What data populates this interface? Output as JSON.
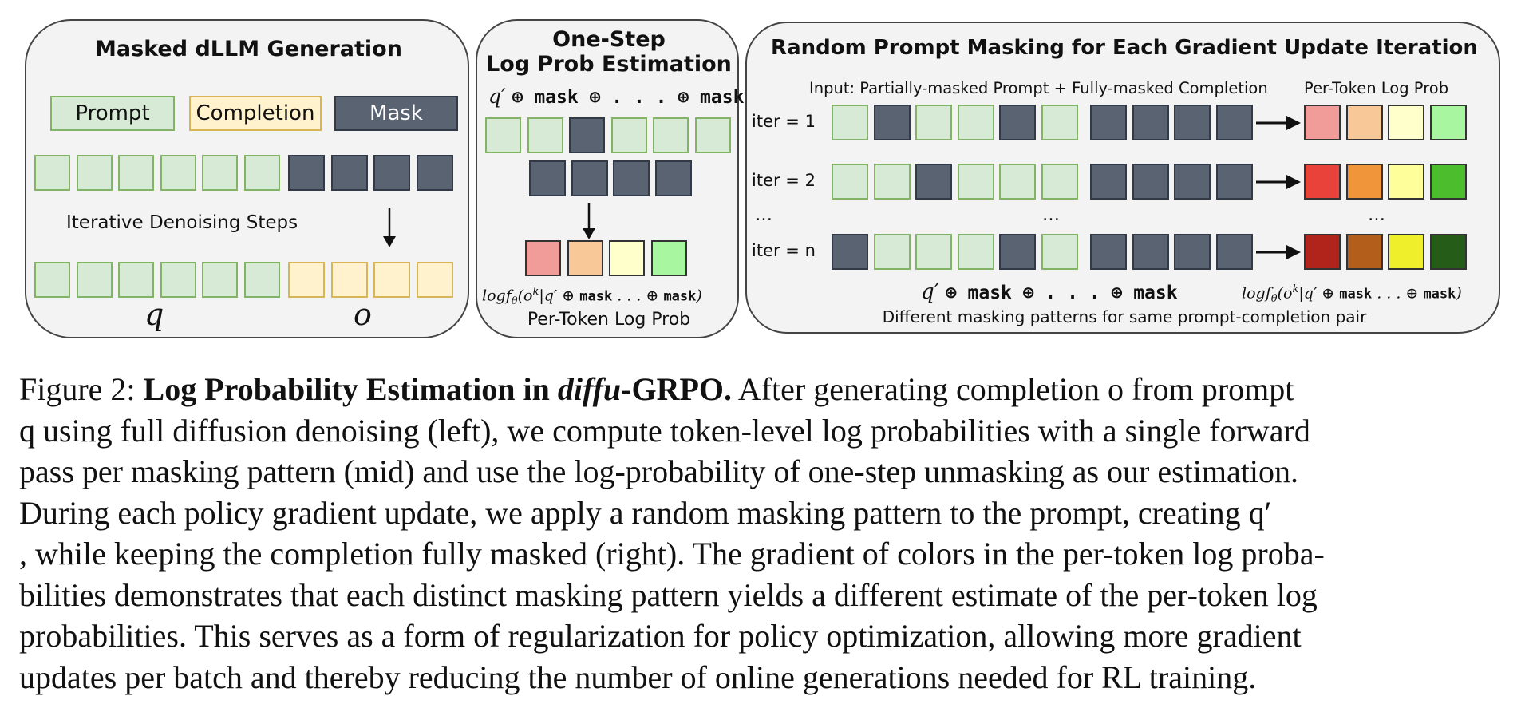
{
  "left_panel": {
    "title": "Masked dLLM Generation",
    "legend": {
      "prompt": "Prompt",
      "completion": "Completion",
      "mask": "Mask"
    },
    "steps_label": "Iterative Denoising Steps",
    "q_label": "q",
    "o_label": "o"
  },
  "mid_panel": {
    "title_line1": "One-Step",
    "title_line2": "Log Prob Estimation",
    "input_formula_q": "q′",
    "input_formula_rest": "⊕ mask ⊕ . . . ⊕ mask",
    "output_formula": "logf_θ(o^k|q′ ⊕ mask . . . ⊕ mask)",
    "output_label": "Per-Token Log Prob",
    "logprob_colors": [
      "#f19c99",
      "#f8c898",
      "#ffffcc",
      "#a8f7a0"
    ]
  },
  "right_panel": {
    "title": "Random Prompt Masking for Each Gradient Update Iteration",
    "input_header": "Input: Partially-masked Prompt + Fully-masked Completion",
    "logprob_header": "Per-Token Log Prob",
    "iterations": [
      {
        "label": "iter = 1",
        "prompt_mask": [
          0,
          1,
          0,
          0,
          1,
          0
        ],
        "colors": [
          "#f19c99",
          "#f8c898",
          "#ffffcc",
          "#a8f7a0"
        ]
      },
      {
        "label": "iter = 2",
        "prompt_mask": [
          0,
          0,
          1,
          0,
          0,
          0
        ],
        "colors": [
          "#e8423b",
          "#f0953a",
          "#fefe9a",
          "#4cbd2c"
        ]
      },
      {
        "label": "iter = n",
        "prompt_mask": [
          1,
          0,
          0,
          0,
          1,
          0
        ],
        "colors": [
          "#b0241b",
          "#b35e1b",
          "#efef2c",
          "#245c18"
        ]
      }
    ],
    "ellipsis": "…",
    "bottom_formula_q": "q′",
    "bottom_formula_rest": "⊕ mask ⊕ . . . ⊕ mask",
    "bottom_logprob_formula": "logf_θ(o^k|q′ ⊕ mask . . . ⊕ mask)",
    "footer": "Different masking patterns for same prompt-completion pair"
  },
  "caption": {
    "figure_label": "Figure 2:",
    "bold_title_a": "Log Probability Estimation in",
    "bold_title_italic": "diffu",
    "bold_title_b": "-GRPO.",
    "line1_rest": "After generating completion o from prompt",
    "line2": "q using full diffusion denoising (left), we compute token-level log probabilities with a single forward",
    "line3": "pass per masking pattern (mid) and use the log-probability of one-step unmasking as our estimation.",
    "line4": "During each policy gradient update, we apply a random masking pattern to the prompt, creating q′",
    "line5": ", while keeping the completion fully masked (right). The gradient of colors in the per-token log proba-",
    "line6": "bilities demonstrates that each distinct masking pattern yields a different estimate of the per-token log",
    "line7": "probabilities. This serves as a form of regularization for policy optimization, allowing more gradient",
    "line8": "updates per batch and thereby reducing the number of online generations needed for RL training."
  }
}
